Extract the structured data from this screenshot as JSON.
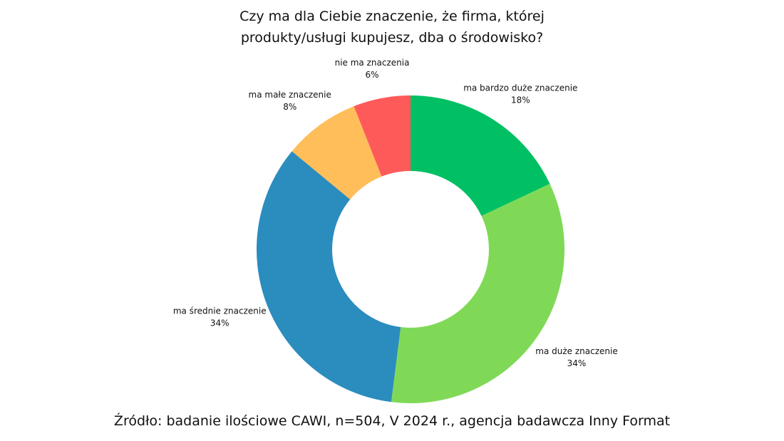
{
  "chart_data": {
    "type": "donut",
    "title": "Czy ma dla Ciebie znaczenie, że firma, której produkty/usługi kupujesz, dba o środowisko?",
    "categories": [
      "ma bardzo duże znaczenie",
      "ma duże znaczenie",
      "ma średnie znaczenie",
      "ma małe znaczenie",
      "nie ma znaczenia"
    ],
    "values": [
      18,
      34,
      34,
      8,
      6
    ],
    "value_labels": [
      "18%",
      "34%",
      "34%",
      "8%",
      "6%"
    ],
    "colors": [
      "#00c063",
      "#7fd957",
      "#2b8cbe",
      "#ffbe5a",
      "#ff5a5a"
    ],
    "source": "Źródło: badanie ilościowe CAWI, n=504, V 2024 r., agencja badawcza Inny Format"
  }
}
